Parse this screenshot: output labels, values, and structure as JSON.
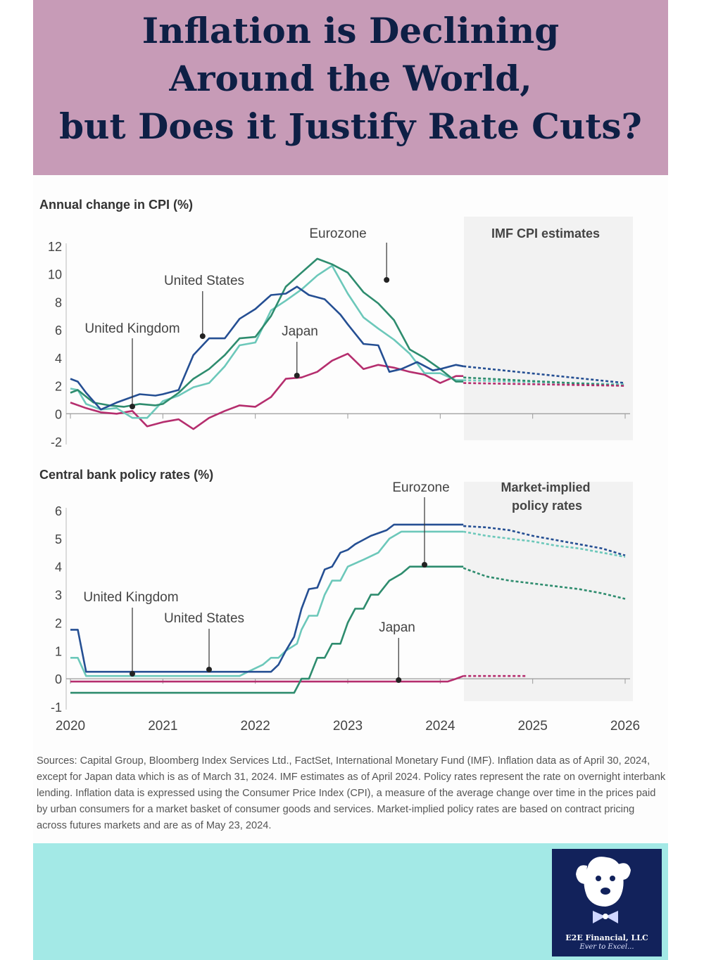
{
  "header": {
    "title_lines": [
      "Inflation is Declining",
      "Around the World,",
      "but Does it Justify Rate Cuts?"
    ]
  },
  "colors": {
    "united_states": "#254f93",
    "eurozone": "#6cc8ba",
    "united_kingdom": "#2e8c6e",
    "japan": "#b52e6e",
    "header_bg": "#c79bb7",
    "footer_bg": "#a3e9e6",
    "forecast_bg": "#f2f2f2",
    "title_text": "#0e1f45"
  },
  "chart_data": [
    {
      "type": "line",
      "title": "Annual change in CPI (%)",
      "xlabel": "",
      "ylabel": "",
      "xlim": [
        2020,
        2026
      ],
      "ylim": [
        -2,
        12
      ],
      "yticks": [
        12,
        10,
        8,
        6,
        4,
        2,
        0,
        -2
      ],
      "shaded_region": {
        "label": "IMF CPI estimates",
        "x_start": 2024.25,
        "x_end": 2026
      },
      "series": [
        {
          "name": "United States",
          "key": "united_states",
          "x": [
            2020,
            2020.08,
            2020.17,
            2020.33,
            2020.5,
            2020.75,
            2020.92,
            2021.0,
            2021.17,
            2021.33,
            2021.5,
            2021.67,
            2021.83,
            2022.0,
            2022.17,
            2022.33,
            2022.45,
            2022.58,
            2022.75,
            2022.92,
            2023.0,
            2023.17,
            2023.33,
            2023.45,
            2023.58,
            2023.75,
            2023.92,
            2024.0,
            2024.17,
            2024.25
          ],
          "values": [
            2.5,
            2.3,
            1.5,
            0.3,
            0.8,
            1.4,
            1.3,
            1.4,
            1.7,
            4.2,
            5.4,
            5.4,
            6.8,
            7.5,
            8.5,
            8.6,
            9.1,
            8.5,
            8.2,
            7.1,
            6.4,
            5.0,
            4.9,
            3.0,
            3.2,
            3.7,
            3.1,
            3.2,
            3.5,
            3.4
          ]
        },
        {
          "name": "Eurozone",
          "key": "eurozone",
          "x": [
            2020,
            2020.08,
            2020.17,
            2020.33,
            2020.5,
            2020.67,
            2020.83,
            2021.0,
            2021.17,
            2021.33,
            2021.5,
            2021.67,
            2021.83,
            2022.0,
            2022.17,
            2022.33,
            2022.5,
            2022.67,
            2022.83,
            2023.0,
            2023.17,
            2023.33,
            2023.5,
            2023.67,
            2023.83,
            2024.0,
            2024.17,
            2024.25
          ],
          "values": [
            1.8,
            1.7,
            0.7,
            0.3,
            0.4,
            -0.3,
            -0.3,
            0.9,
            1.3,
            1.9,
            2.2,
            3.4,
            4.9,
            5.1,
            7.4,
            8.1,
            8.9,
            9.9,
            10.6,
            8.6,
            6.9,
            6.1,
            5.3,
            4.3,
            2.9,
            2.9,
            2.4,
            2.4
          ]
        },
        {
          "name": "United Kingdom",
          "key": "united_kingdom",
          "x": [
            2020,
            2020.08,
            2020.25,
            2020.42,
            2020.58,
            2020.75,
            2020.92,
            2021.0,
            2021.17,
            2021.33,
            2021.5,
            2021.67,
            2021.83,
            2022.0,
            2022.17,
            2022.33,
            2022.5,
            2022.67,
            2022.83,
            2023.0,
            2023.17,
            2023.33,
            2023.5,
            2023.67,
            2023.83,
            2024.0,
            2024.17,
            2024.25
          ],
          "values": [
            1.5,
            1.7,
            0.8,
            0.6,
            0.5,
            0.7,
            0.6,
            0.7,
            1.5,
            2.5,
            3.2,
            4.2,
            5.4,
            5.5,
            7.0,
            9.1,
            10.1,
            11.1,
            10.7,
            10.1,
            8.7,
            7.9,
            6.7,
            4.6,
            4.0,
            3.2,
            2.3,
            2.3
          ]
        },
        {
          "name": "Japan",
          "key": "japan",
          "x": [
            2020,
            2020.17,
            2020.33,
            2020.5,
            2020.67,
            2020.83,
            2021.0,
            2021.17,
            2021.33,
            2021.5,
            2021.67,
            2021.83,
            2022.0,
            2022.17,
            2022.33,
            2022.5,
            2022.67,
            2022.83,
            2023.0,
            2023.17,
            2023.33,
            2023.5,
            2023.67,
            2023.83,
            2024.0,
            2024.17,
            2024.25
          ],
          "values": [
            0.8,
            0.4,
            0.1,
            0.0,
            0.2,
            -0.9,
            -0.6,
            -0.4,
            -1.1,
            -0.3,
            0.2,
            0.6,
            0.5,
            1.2,
            2.5,
            2.6,
            3.0,
            3.8,
            4.3,
            3.2,
            3.5,
            3.3,
            3.0,
            2.8,
            2.2,
            2.7,
            2.7
          ]
        }
      ],
      "forecast_series": [
        {
          "key": "united_states",
          "x": [
            2024.25,
            2026
          ],
          "values": [
            3.4,
            2.2
          ]
        },
        {
          "key": "eurozone",
          "x": [
            2024.25,
            2026
          ],
          "values": [
            2.4,
            2.1
          ]
        },
        {
          "key": "united_kingdom",
          "x": [
            2024.25,
            2026
          ],
          "values": [
            2.6,
            2.0
          ]
        },
        {
          "key": "japan",
          "x": [
            2024.25,
            2026
          ],
          "values": [
            2.2,
            2.0
          ]
        }
      ],
      "annotations": [
        {
          "text": "Eurozone",
          "x": 2023.42
        },
        {
          "text": "United States",
          "x": 2021.43
        },
        {
          "text": "United Kingdom",
          "x": 2020.67
        },
        {
          "text": "Japan",
          "x": 2022.45
        }
      ]
    },
    {
      "type": "line",
      "title": "Central bank policy rates (%)",
      "xlabel": "",
      "ylabel": "",
      "xlim": [
        2020,
        2026
      ],
      "ylim": [
        -1,
        6
      ],
      "yticks": [
        6,
        5,
        4,
        3,
        2,
        1,
        0,
        -1
      ],
      "xticks": [
        "2020",
        "2021",
        "2022",
        "2023",
        "2024",
        "2025",
        "2026"
      ],
      "shaded_region": {
        "label_lines": [
          "Market-implied",
          "policy rates"
        ],
        "x_start": 2024.25,
        "x_end": 2026
      },
      "series": [
        {
          "name": "United States",
          "key": "united_states",
          "x": [
            2020,
            2020.08,
            2020.17,
            2022.0,
            2022.17,
            2022.25,
            2022.33,
            2022.42,
            2022.5,
            2022.58,
            2022.67,
            2022.75,
            2022.83,
            2022.92,
            2023.0,
            2023.08,
            2023.25,
            2023.42,
            2023.5,
            2024.25
          ],
          "values": [
            1.75,
            1.75,
            0.25,
            0.25,
            0.25,
            0.5,
            1.0,
            1.5,
            2.5,
            3.2,
            3.25,
            3.9,
            4.0,
            4.5,
            4.6,
            4.8,
            5.1,
            5.3,
            5.5,
            5.5
          ]
        },
        {
          "name": "Eurozone",
          "key": "eurozone",
          "x": [
            2020,
            2020.08,
            2020.17,
            2021.83,
            2021.92,
            2022.08,
            2022.17,
            2022.25,
            2022.33,
            2022.45,
            2022.5,
            2022.58,
            2022.67,
            2022.75,
            2022.83,
            2022.92,
            2023.0,
            2023.17,
            2023.33,
            2023.45,
            2023.58,
            2024.25
          ],
          "values": [
            0.75,
            0.75,
            0.1,
            0.1,
            0.25,
            0.5,
            0.75,
            0.75,
            1.0,
            1.25,
            1.75,
            2.25,
            2.25,
            3.0,
            3.5,
            3.5,
            4.0,
            4.25,
            4.5,
            5.0,
            5.25,
            5.25
          ]
        },
        {
          "name": "United Kingdom",
          "key": "united_kingdom",
          "x": [
            2020,
            2022.42,
            2022.5,
            2022.58,
            2022.67,
            2022.75,
            2022.83,
            2022.92,
            2023.0,
            2023.08,
            2023.17,
            2023.25,
            2023.33,
            2023.45,
            2023.58,
            2023.67,
            2024.25
          ],
          "values": [
            -0.5,
            -0.5,
            0.0,
            0.0,
            0.75,
            0.75,
            1.25,
            1.25,
            2.0,
            2.5,
            2.5,
            3.0,
            3.0,
            3.5,
            3.75,
            4.0,
            4.0
          ]
        },
        {
          "name": "Japan",
          "key": "japan",
          "x": [
            2020,
            2024.08,
            2024.17,
            2024.25
          ],
          "values": [
            -0.1,
            -0.1,
            0.0,
            0.1
          ]
        }
      ],
      "forecast_series": [
        {
          "key": "united_states",
          "x": [
            2024.25,
            2024.5,
            2024.75,
            2025.0,
            2025.25,
            2025.5,
            2025.75,
            2026
          ],
          "values": [
            5.45,
            5.4,
            5.3,
            5.1,
            4.95,
            4.8,
            4.65,
            4.4
          ]
        },
        {
          "key": "eurozone",
          "x": [
            2024.25,
            2024.5,
            2024.75,
            2025.0,
            2025.25,
            2025.5,
            2025.75,
            2026
          ],
          "values": [
            5.25,
            5.1,
            5.0,
            4.9,
            4.75,
            4.65,
            4.5,
            4.35
          ]
        },
        {
          "key": "united_kingdom",
          "x": [
            2024.25,
            2024.5,
            2024.75,
            2025.0,
            2025.25,
            2025.5,
            2025.75,
            2026
          ],
          "values": [
            3.95,
            3.65,
            3.5,
            3.4,
            3.3,
            3.2,
            3.05,
            2.85
          ]
        },
        {
          "key": "japan",
          "x": [
            2024.25,
            2024.92
          ],
          "values": [
            0.1,
            0.1
          ]
        }
      ],
      "annotations": [
        {
          "text": "Eurozone",
          "x": 2023.83
        },
        {
          "text": "United Kingdom",
          "x": 2020.67
        },
        {
          "text": "United States",
          "x": 2021.5
        },
        {
          "text": "Japan",
          "x": 2023.55
        }
      ]
    }
  ],
  "sources": "Sources: Capital Group, Bloomberg Index Services Ltd., FactSet, International Monetary Fund (IMF). Inflation data as of April 30, 2024, except for Japan data which is as of March 31, 2024. IMF estimates as of April 2024. Policy rates represent the rate on overnight interbank lending. Inflation data is expressed using the Consumer Price Index (CPI), a measure of the average change over time in the prices paid by urban consumers for a market basket of consumer goods and services. Market-implied policy rates are based on contract pricing across futures markets and are as of May 23, 2024.",
  "logo": {
    "name": "E2E Financial, LLC",
    "tagline": "Ever to Excel..."
  }
}
